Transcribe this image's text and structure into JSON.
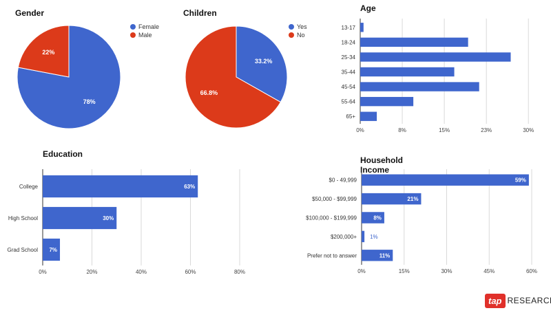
{
  "colors": {
    "blue": "#3f66cd",
    "red": "#dc3a1a",
    "grid": "#d9d9d9",
    "axis": "#333333"
  },
  "chart_data": [
    {
      "id": "gender",
      "type": "pie",
      "title": "Gender",
      "slices": [
        {
          "name": "Female",
          "value": 78,
          "label": "78%"
        },
        {
          "name": "Male",
          "value": 22,
          "label": "22%"
        }
      ],
      "legend": "right"
    },
    {
      "id": "children",
      "type": "pie",
      "title": "Children",
      "slices": [
        {
          "name": "Yes",
          "value": 33.2,
          "label": "33.2%"
        },
        {
          "name": "No",
          "value": 66.8,
          "label": "66.8%"
        }
      ],
      "legend": "right"
    },
    {
      "id": "age",
      "type": "bar",
      "orientation": "horizontal",
      "title": "Age",
      "categories": [
        "13-17",
        "18-24",
        "25-34",
        "35-44",
        "45-54",
        "55-64",
        "65+"
      ],
      "values": [
        0.6,
        19.5,
        27.2,
        17.0,
        21.5,
        9.6,
        3.0
      ],
      "xlim": [
        0,
        30.5
      ],
      "ticks": [
        0,
        7.6,
        15.2,
        22.8,
        30.4
      ],
      "tick_labels": [
        "0%",
        "8%",
        "15%",
        "23%",
        "30%"
      ],
      "grid": true
    },
    {
      "id": "education",
      "type": "bar",
      "orientation": "horizontal",
      "title": "Education",
      "categories": [
        "College",
        "High School",
        "Grad School"
      ],
      "values": [
        63,
        30,
        7
      ],
      "value_labels": [
        "63%",
        "30%",
        "7%"
      ],
      "xlim": [
        0,
        80
      ],
      "ticks": [
        0,
        20,
        40,
        60,
        80
      ],
      "tick_labels": [
        "0%",
        "20%",
        "40%",
        "60%",
        "80%"
      ],
      "grid": true
    },
    {
      "id": "income",
      "type": "bar",
      "orientation": "horizontal",
      "title": "Household Income",
      "categories": [
        "$0 - 49,999",
        "$50,000 - $99,999",
        "$100,000 - $199,999",
        "$200,000+",
        "Prefer not to answer"
      ],
      "values": [
        59,
        21,
        8,
        1,
        11
      ],
      "value_labels": [
        "59%",
        "21%",
        "8%",
        "1%",
        "11%"
      ],
      "xlim": [
        0,
        60
      ],
      "ticks": [
        0,
        15,
        30,
        45,
        60
      ],
      "tick_labels": [
        "0%",
        "15%",
        "30%",
        "45%",
        "60%"
      ],
      "grid": true
    }
  ],
  "brand": {
    "mark": "tap",
    "text": "RESEARCH"
  }
}
